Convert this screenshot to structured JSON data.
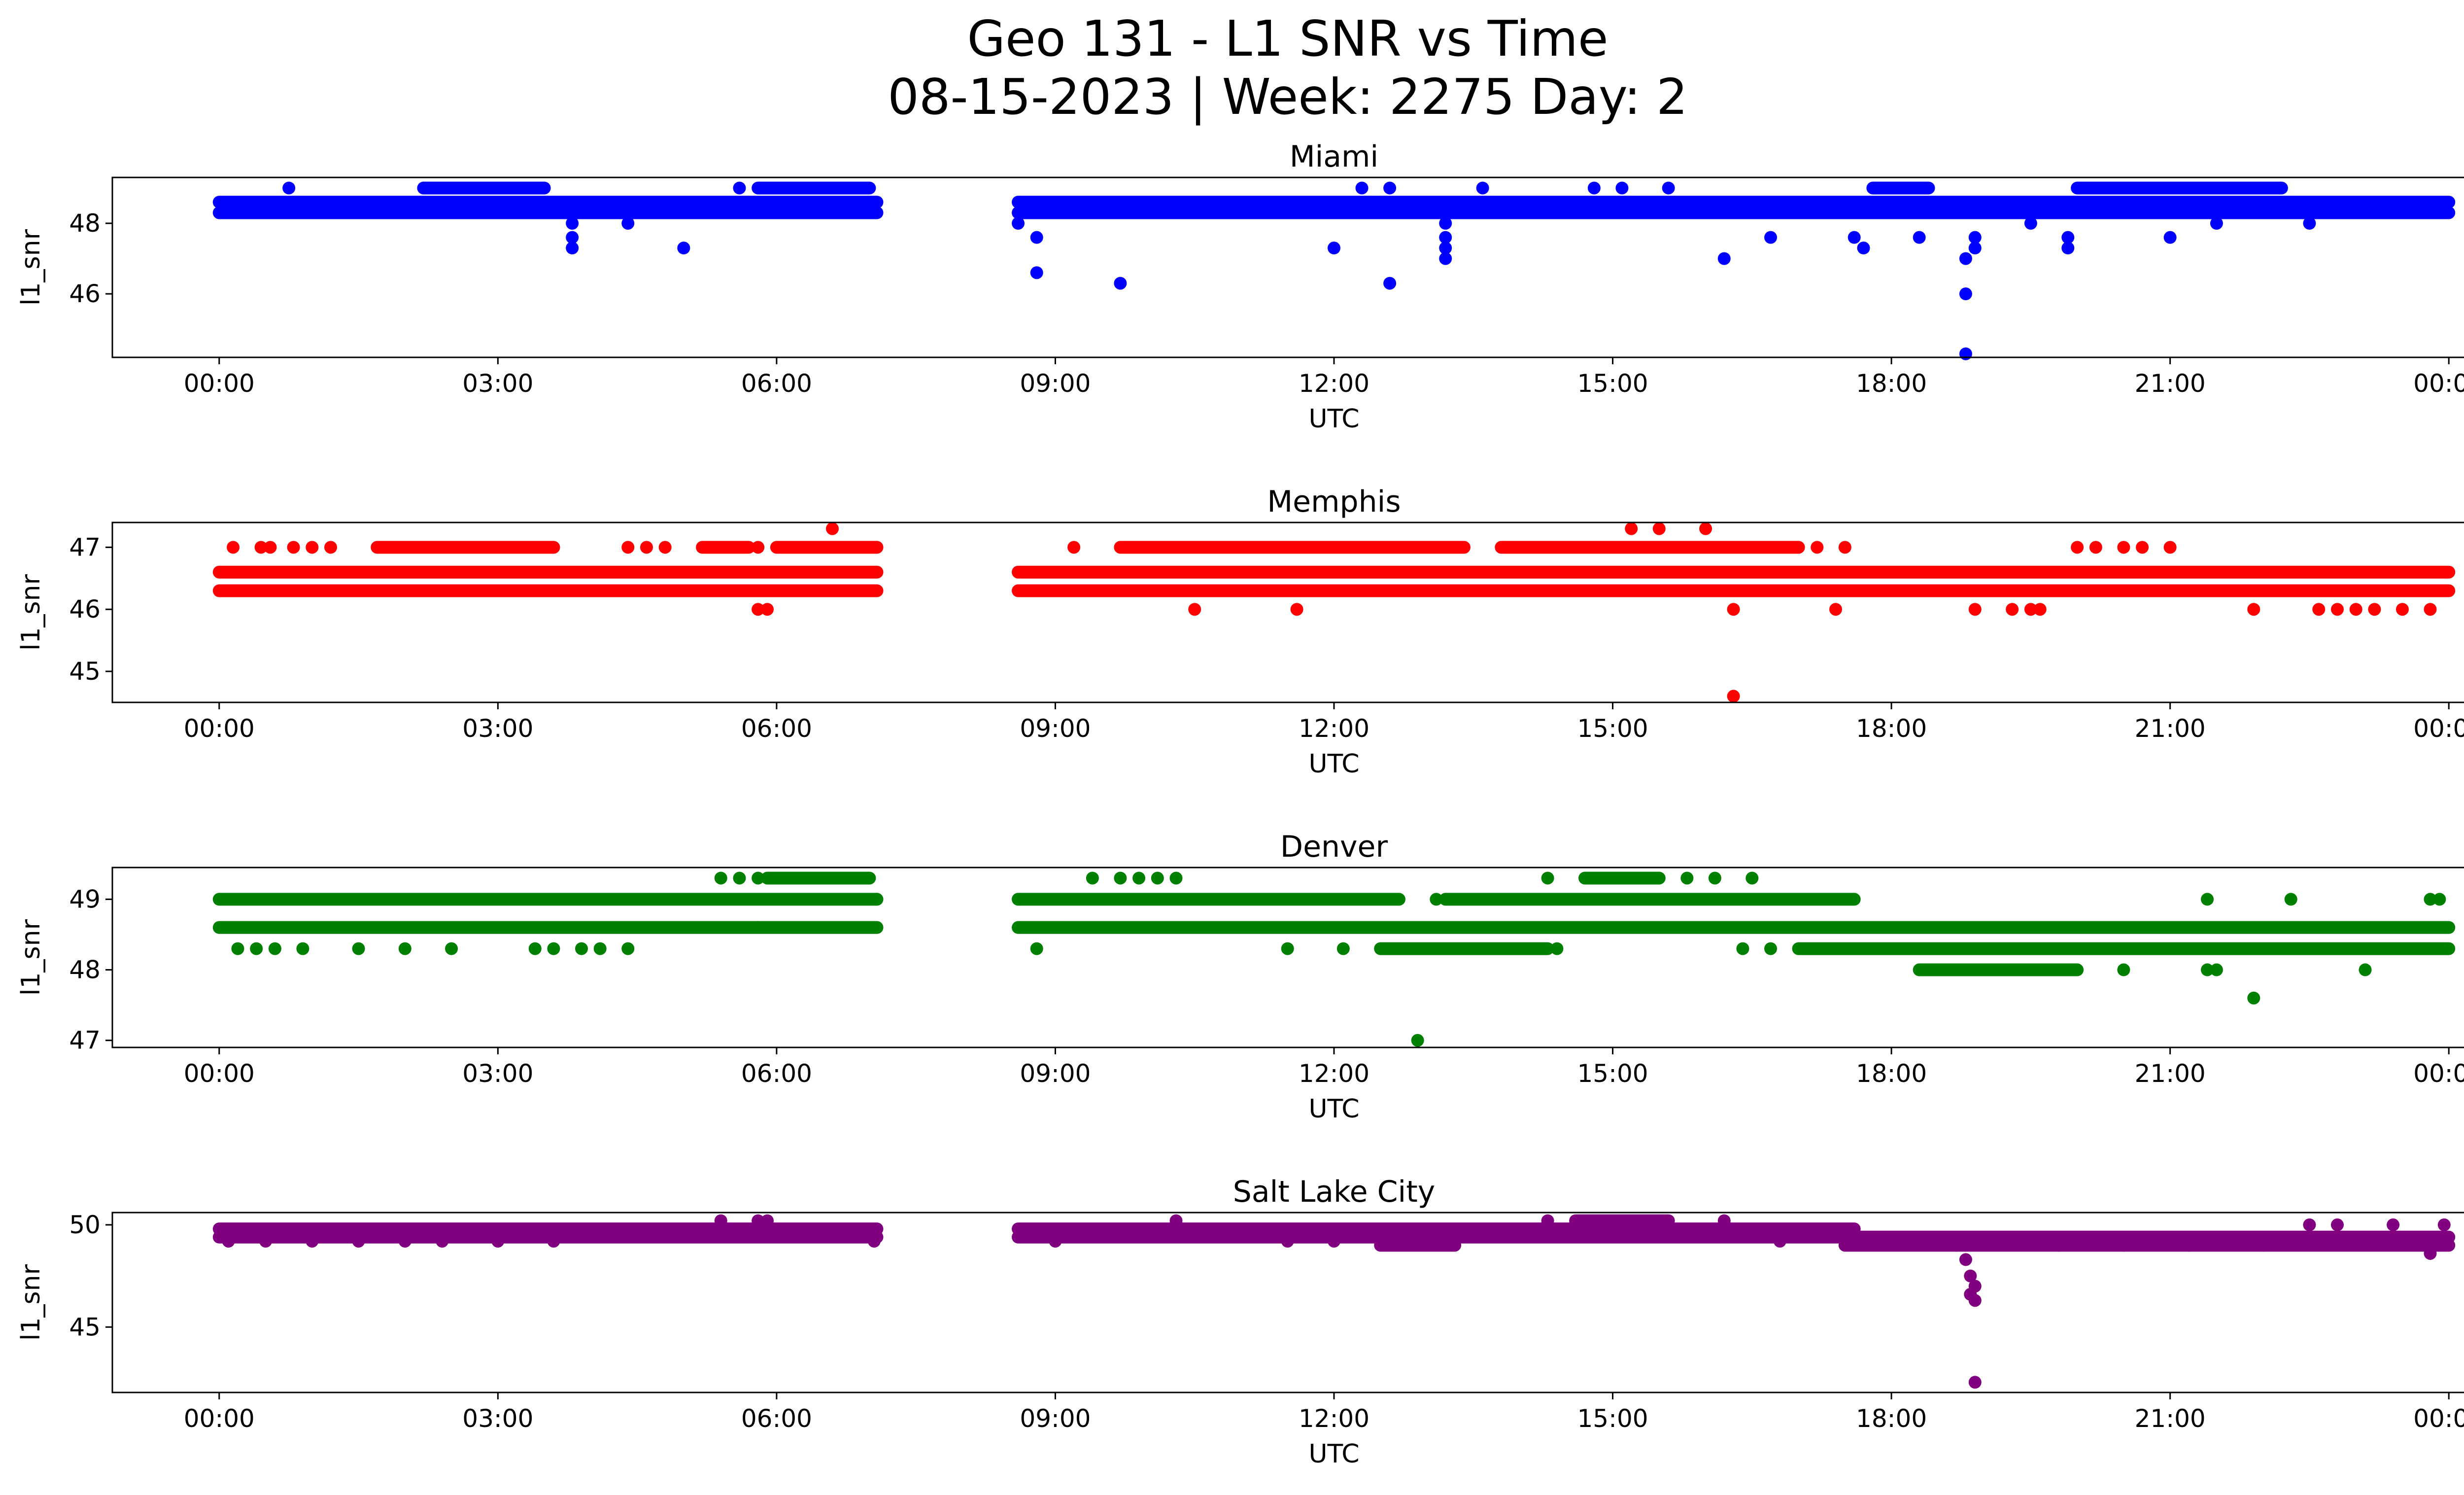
{
  "figure": {
    "title_line1": "Geo 131 - L1 SNR vs Time",
    "title_line2": "08-15-2023 | Week: 2275 Day: 2"
  },
  "chart_data": [
    {
      "type": "scatter",
      "title": "Miami",
      "xlabel": "UTC",
      "ylabel": "l1_snr",
      "color": "#0000ff",
      "x_ticks": [
        "00:00",
        "03:00",
        "06:00",
        "09:00",
        "12:00",
        "15:00",
        "18:00",
        "21:00",
        "00:00"
      ],
      "y_ticks": [
        46,
        48
      ],
      "ylim": [
        44.2,
        49.3
      ],
      "xlim_hours": [
        -1.15,
        25.15
      ],
      "bands": [
        {
          "x": [
            0.0,
            7.08
          ],
          "y": 48.3
        },
        {
          "x": [
            0.0,
            7.08
          ],
          "y": 48.6
        },
        {
          "x": [
            2.2,
            3.5
          ],
          "y": 49.0
        },
        {
          "x": [
            5.8,
            7.0
          ],
          "y": 49.0
        },
        {
          "x": [
            8.6,
            24.0
          ],
          "y": 48.3
        },
        {
          "x": [
            8.6,
            24.0
          ],
          "y": 48.6
        },
        {
          "x": [
            17.8,
            18.4
          ],
          "y": 49.0
        },
        {
          "x": [
            20.0,
            22.2
          ],
          "y": 49.0
        }
      ],
      "points": [
        [
          0.75,
          49.0
        ],
        [
          3.8,
          47.6
        ],
        [
          3.8,
          47.3
        ],
        [
          3.8,
          48.0
        ],
        [
          5.0,
          47.3
        ],
        [
          4.4,
          48.0
        ],
        [
          2.2,
          49.0
        ],
        [
          5.6,
          49.0
        ],
        [
          6.1,
          49.0
        ],
        [
          8.6,
          48.0
        ],
        [
          8.8,
          47.6
        ],
        [
          8.8,
          46.6
        ],
        [
          9.7,
          46.3
        ],
        [
          12.0,
          47.3
        ],
        [
          12.6,
          46.3
        ],
        [
          12.3,
          49.0
        ],
        [
          12.6,
          49.0
        ],
        [
          13.2,
          47.0
        ],
        [
          13.2,
          47.3
        ],
        [
          13.2,
          47.6
        ],
        [
          13.2,
          48.0
        ],
        [
          13.6,
          49.0
        ],
        [
          14.8,
          49.0
        ],
        [
          15.1,
          49.0
        ],
        [
          15.6,
          49.0
        ],
        [
          16.2,
          47.0
        ],
        [
          16.7,
          47.6
        ],
        [
          17.6,
          47.6
        ],
        [
          17.7,
          47.3
        ],
        [
          18.3,
          47.6
        ],
        [
          18.8,
          46.0
        ],
        [
          18.8,
          44.3
        ],
        [
          18.8,
          47.0
        ],
        [
          18.9,
          47.3
        ],
        [
          18.9,
          47.6
        ],
        [
          19.5,
          48.0
        ],
        [
          19.9,
          47.3
        ],
        [
          19.9,
          47.6
        ],
        [
          21.0,
          47.6
        ],
        [
          21.5,
          48.0
        ],
        [
          18.0,
          49.0
        ],
        [
          22.5,
          48.0
        ]
      ]
    },
    {
      "type": "scatter",
      "title": "Memphis",
      "xlabel": "UTC",
      "ylabel": "l1_snr",
      "color": "#ff0000",
      "x_ticks": [
        "00:00",
        "03:00",
        "06:00",
        "09:00",
        "12:00",
        "15:00",
        "18:00",
        "21:00",
        "00:00"
      ],
      "y_ticks": [
        45,
        46,
        47
      ],
      "ylim": [
        44.5,
        47.4
      ],
      "xlim_hours": [
        -1.15,
        25.15
      ],
      "bands": [
        {
          "x": [
            0.0,
            7.08
          ],
          "y": 46.3
        },
        {
          "x": [
            0.0,
            7.08
          ],
          "y": 46.6
        },
        {
          "x": [
            1.7,
            3.6
          ],
          "y": 47.0
        },
        {
          "x": [
            5.2,
            5.7
          ],
          "y": 47.0
        },
        {
          "x": [
            6.0,
            7.08
          ],
          "y": 47.0
        },
        {
          "x": [
            8.6,
            24.0
          ],
          "y": 46.3
        },
        {
          "x": [
            8.6,
            24.0
          ],
          "y": 46.6
        },
        {
          "x": [
            9.7,
            13.4
          ],
          "y": 47.0
        },
        {
          "x": [
            13.8,
            17.0
          ],
          "y": 47.0
        }
      ],
      "points": [
        [
          0.15,
          47.0
        ],
        [
          0.45,
          47.0
        ],
        [
          0.55,
          47.0
        ],
        [
          0.8,
          47.0
        ],
        [
          1.0,
          47.0
        ],
        [
          1.2,
          47.0
        ],
        [
          4.4,
          47.0
        ],
        [
          4.6,
          47.0
        ],
        [
          4.8,
          47.0
        ],
        [
          5.8,
          47.0
        ],
        [
          6.6,
          47.3
        ],
        [
          5.8,
          46.0
        ],
        [
          5.9,
          46.0
        ],
        [
          6.7,
          46.3
        ],
        [
          6.9,
          46.3
        ],
        [
          9.2,
          47.0
        ],
        [
          10.5,
          46.0
        ],
        [
          11.6,
          46.0
        ],
        [
          15.2,
          47.3
        ],
        [
          15.5,
          47.3
        ],
        [
          16.0,
          47.3
        ],
        [
          16.3,
          44.6
        ],
        [
          16.3,
          46.0
        ],
        [
          17.4,
          46.0
        ],
        [
          17.0,
          47.0
        ],
        [
          17.2,
          47.0
        ],
        [
          17.5,
          47.0
        ],
        [
          18.9,
          46.0
        ],
        [
          19.3,
          46.0
        ],
        [
          19.5,
          46.0
        ],
        [
          19.6,
          46.0
        ],
        [
          20.0,
          47.0
        ],
        [
          20.2,
          47.0
        ],
        [
          20.5,
          47.0
        ],
        [
          20.7,
          47.0
        ],
        [
          21.0,
          47.0
        ],
        [
          21.9,
          46.0
        ],
        [
          22.6,
          46.0
        ],
        [
          22.8,
          46.0
        ],
        [
          23.0,
          46.0
        ],
        [
          23.2,
          46.0
        ],
        [
          23.5,
          46.0
        ],
        [
          23.8,
          46.0
        ]
      ]
    },
    {
      "type": "scatter",
      "title": "Denver",
      "xlabel": "UTC",
      "ylabel": "l1_snr",
      "color": "#008000",
      "x_ticks": [
        "00:00",
        "03:00",
        "06:00",
        "09:00",
        "12:00",
        "15:00",
        "18:00",
        "21:00",
        "00:00"
      ],
      "y_ticks": [
        47,
        48,
        49
      ],
      "ylim": [
        46.9,
        49.45
      ],
      "xlim_hours": [
        -1.15,
        25.15
      ],
      "bands": [
        {
          "x": [
            0.0,
            7.08
          ],
          "y": 48.6
        },
        {
          "x": [
            0.0,
            7.08
          ],
          "y": 49.0
        },
        {
          "x": [
            5.9,
            7.0
          ],
          "y": 49.3
        },
        {
          "x": [
            8.6,
            24.0
          ],
          "y": 48.6
        },
        {
          "x": [
            8.6,
            12.7
          ],
          "y": 49.0
        },
        {
          "x": [
            13.2,
            17.6
          ],
          "y": 49.0
        },
        {
          "x": [
            14.7,
            15.5
          ],
          "y": 49.3
        },
        {
          "x": [
            12.5,
            14.3
          ],
          "y": 48.3
        },
        {
          "x": [
            17.0,
            24.0
          ],
          "y": 48.3
        },
        {
          "x": [
            18.3,
            20.0
          ],
          "y": 48.0
        }
      ],
      "points": [
        [
          0.2,
          48.3
        ],
        [
          0.4,
          48.3
        ],
        [
          0.6,
          48.3
        ],
        [
          0.9,
          48.3
        ],
        [
          1.5,
          48.3
        ],
        [
          2.0,
          48.3
        ],
        [
          2.5,
          48.3
        ],
        [
          3.4,
          48.3
        ],
        [
          3.6,
          48.3
        ],
        [
          3.9,
          48.3
        ],
        [
          4.1,
          48.3
        ],
        [
          4.4,
          48.3
        ],
        [
          5.4,
          49.3
        ],
        [
          5.6,
          49.3
        ],
        [
          5.8,
          49.3
        ],
        [
          5.8,
          48.6
        ],
        [
          8.8,
          48.3
        ],
        [
          9.4,
          49.3
        ],
        [
          9.7,
          49.3
        ],
        [
          9.9,
          49.3
        ],
        [
          10.1,
          49.3
        ],
        [
          10.3,
          49.3
        ],
        [
          11.5,
          48.3
        ],
        [
          12.1,
          48.3
        ],
        [
          12.9,
          47.0
        ],
        [
          13.1,
          49.0
        ],
        [
          14.4,
          48.3
        ],
        [
          14.3,
          49.3
        ],
        [
          15.8,
          49.3
        ],
        [
          16.1,
          49.3
        ],
        [
          16.5,
          49.3
        ],
        [
          16.4,
          48.3
        ],
        [
          16.7,
          48.3
        ],
        [
          20.5,
          48.0
        ],
        [
          21.4,
          48.0
        ],
        [
          21.5,
          48.0
        ],
        [
          21.9,
          47.6
        ],
        [
          21.4,
          49.0
        ],
        [
          22.3,
          49.0
        ],
        [
          23.1,
          48.0
        ],
        [
          23.8,
          49.0
        ],
        [
          23.9,
          49.0
        ]
      ]
    },
    {
      "type": "scatter",
      "title": "Salt Lake City",
      "xlabel": "UTC",
      "ylabel": "l1_snr",
      "color": "#800080",
      "x_ticks": [
        "00:00",
        "03:00",
        "06:00",
        "09:00",
        "12:00",
        "15:00",
        "18:00",
        "21:00",
        "00:00"
      ],
      "y_ticks": [
        45,
        50
      ],
      "ylim": [
        41.8,
        50.6
      ],
      "xlim_hours": [
        -1.15,
        25.15
      ],
      "bands": [
        {
          "x": [
            0.0,
            7.08
          ],
          "y": 49.4
        },
        {
          "x": [
            0.0,
            7.08
          ],
          "y": 49.8
        },
        {
          "x": [
            8.6,
            24.0
          ],
          "y": 49.4
        },
        {
          "x": [
            8.6,
            17.6
          ],
          "y": 49.8
        },
        {
          "x": [
            14.6,
            15.6
          ],
          "y": 50.2
        },
        {
          "x": [
            12.5,
            13.3
          ],
          "y": 49.0
        },
        {
          "x": [
            17.5,
            24.0
          ],
          "y": 49.0
        }
      ],
      "points": [
        [
          0.1,
          49.2
        ],
        [
          0.5,
          49.2
        ],
        [
          1.0,
          49.2
        ],
        [
          1.5,
          49.2
        ],
        [
          2.0,
          49.2
        ],
        [
          2.4,
          49.2
        ],
        [
          3.0,
          49.2
        ],
        [
          3.6,
          49.2
        ],
        [
          5.4,
          50.2
        ],
        [
          5.8,
          50.2
        ],
        [
          5.9,
          50.2
        ],
        [
          7.05,
          49.2
        ],
        [
          9.0,
          49.2
        ],
        [
          10.3,
          50.2
        ],
        [
          11.5,
          49.2
        ],
        [
          12.0,
          49.2
        ],
        [
          14.3,
          50.2
        ],
        [
          16.2,
          50.2
        ],
        [
          16.8,
          49.2
        ],
        [
          18.8,
          48.3
        ],
        [
          18.85,
          47.5
        ],
        [
          18.9,
          47.0
        ],
        [
          18.85,
          46.6
        ],
        [
          18.9,
          46.3
        ],
        [
          18.9,
          42.3
        ],
        [
          18.7,
          49.0
        ],
        [
          19.8,
          49.0
        ],
        [
          20.5,
          49.0
        ],
        [
          21.2,
          49.0
        ],
        [
          22.0,
          49.0
        ],
        [
          22.5,
          50.0
        ],
        [
          22.8,
          50.0
        ],
        [
          23.4,
          50.0
        ],
        [
          23.8,
          48.6
        ],
        [
          23.95,
          50.0
        ]
      ]
    }
  ]
}
